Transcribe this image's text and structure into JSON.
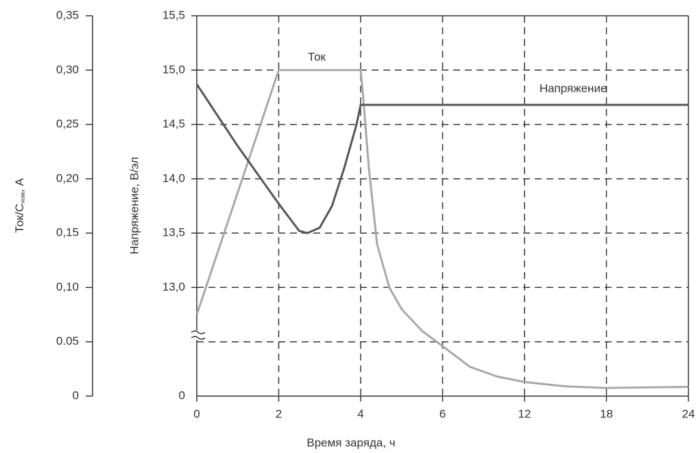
{
  "chart_data": {
    "type": "line",
    "x_label": "Время заряда, ч",
    "y_label": {
      "main": "Ток/С",
      "sub": "ном",
      "unit": ", А"
    },
    "y2_label": "Напряжение, В/эл",
    "y2_break_label": "0",
    "xlim": [
      0,
      24
    ],
    "xticks": [
      0,
      2,
      4,
      6,
      12,
      18,
      24
    ],
    "ylim": [
      0,
      0.35
    ],
    "yticks": [
      0,
      {
        "value": 0.05,
        "label": "0.05"
      },
      {
        "value": 0.1,
        "label": "0,10"
      },
      {
        "value": 0.15,
        "label": "0,15"
      },
      {
        "value": 0.2,
        "label": "0,20"
      },
      {
        "value": 0.25,
        "label": "0,25"
      },
      {
        "value": 0.3,
        "label": "0,30"
      },
      {
        "value": 0.35,
        "label": "0,35"
      }
    ],
    "y2lim": [
      12,
      15.5
    ],
    "y2ticks": [
      {
        "value": 13,
        "label": "13,0"
      },
      {
        "value": 13.5,
        "label": "13,5"
      },
      {
        "value": 14,
        "label": "14,0"
      },
      {
        "value": 14.5,
        "label": "14,5"
      },
      {
        "value": 15,
        "label": "15,0"
      },
      {
        "value": 15.5,
        "label": "15,5"
      }
    ],
    "grid": true,
    "series": [
      {
        "name": "Ток",
        "color": "#a8a8a8",
        "x": [
          0,
          2,
          4,
          4.05,
          4.2,
          4.4,
          4.7,
          5,
          5.5,
          6,
          8,
          10,
          12,
          15,
          18,
          24
        ],
        "values": [
          0.075,
          0.3,
          0.3,
          0.28,
          0.21,
          0.14,
          0.1,
          0.08,
          0.06,
          0.046,
          0.027,
          0.018,
          0.013,
          0.009,
          0.0075,
          0.0085
        ]
      },
      {
        "name": "Напряжение",
        "color": "#555555",
        "axis": "y2",
        "x": [
          0,
          1,
          2,
          2.5,
          2.7,
          3,
          3.3,
          3.6,
          3.9,
          4,
          24
        ],
        "values": [
          14.87,
          14.3,
          13.77,
          13.52,
          13.5,
          13.55,
          13.75,
          14.1,
          14.5,
          14.68,
          14.68
        ]
      }
    ]
  }
}
